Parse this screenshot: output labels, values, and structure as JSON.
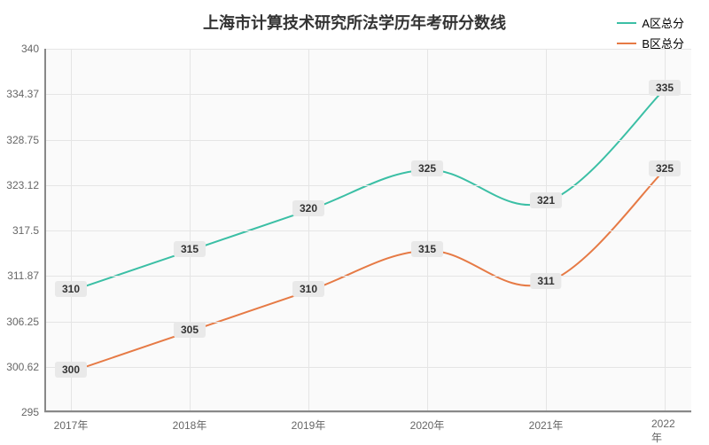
{
  "chart": {
    "type": "line",
    "title": "上海市计算技术研究所法学历年考研分数线",
    "title_fontsize": 18,
    "title_color": "#333333",
    "background_color": "#ffffff",
    "plot_background": "#fafafa",
    "grid_color": "#e5e5e5",
    "axis_color": "#888888",
    "label_fontsize": 12,
    "x": {
      "categories": [
        "2017年",
        "2018年",
        "2019年",
        "2020年",
        "2021年",
        "2022年"
      ]
    },
    "y": {
      "min": 295,
      "max": 340,
      "ticks": [
        295,
        300.62,
        306.25,
        311.87,
        317.5,
        323.12,
        328.75,
        334.37,
        340
      ]
    },
    "series": [
      {
        "name": "A区总分",
        "color": "#3bbfa5",
        "line_width": 2,
        "values": [
          310,
          315,
          320,
          325,
          321,
          335
        ],
        "label_bg": "#e9e9e9",
        "label_color": "#333333"
      },
      {
        "name": "B区总分",
        "color": "#e67a45",
        "line_width": 2,
        "values": [
          300,
          305,
          310,
          315,
          311,
          325
        ],
        "label_bg": "#e9e9e9",
        "label_color": "#333333"
      }
    ],
    "legend": {
      "position": "top-right",
      "fontsize": 13
    }
  }
}
